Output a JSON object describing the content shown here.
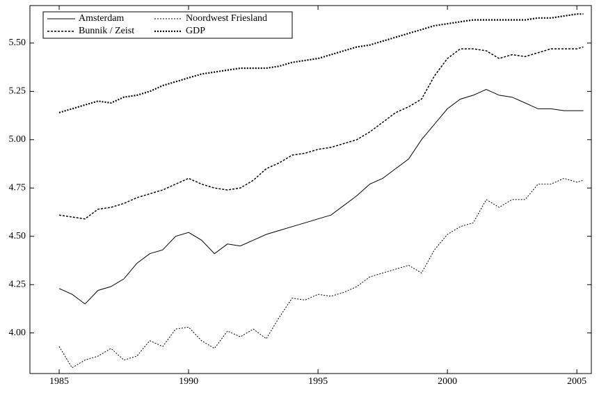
{
  "chart_data": {
    "type": "line",
    "x": [
      1985,
      1985.5,
      1986,
      1986.5,
      1987,
      1987.5,
      1988,
      1988.5,
      1989,
      1989.5,
      1990,
      1990.5,
      1991,
      1991.5,
      1992,
      1992.5,
      1993,
      1993.5,
      1994,
      1994.5,
      1995,
      1995.5,
      1996,
      1996.5,
      1997,
      1997.5,
      1998,
      1998.5,
      1999,
      1999.5,
      2000,
      2000.5,
      2001,
      2001.5,
      2002,
      2002.5,
      2003,
      2003.5,
      2004,
      2004.5,
      2005,
      2005.25
    ],
    "series": [
      {
        "name": "Amsterdam",
        "color": "#000000",
        "values": [
          4.23,
          4.2,
          4.15,
          4.22,
          4.24,
          4.28,
          4.36,
          4.41,
          4.43,
          4.5,
          4.52,
          4.48,
          4.41,
          4.46,
          4.45,
          4.48,
          4.51,
          4.53,
          4.55,
          4.57,
          4.59,
          4.61,
          4.66,
          4.71,
          4.77,
          4.8,
          4.85,
          4.9,
          5.0,
          5.08,
          5.16,
          5.21,
          5.23,
          5.26,
          5.23,
          5.22,
          5.19,
          5.16,
          5.16,
          5.15,
          5.15,
          5.15
        ]
      },
      {
        "name": "Noordwest Friesland",
        "color": "#000000",
        "values": [
          3.93,
          3.82,
          3.86,
          3.88,
          3.92,
          3.86,
          3.88,
          3.96,
          3.93,
          4.02,
          4.03,
          3.96,
          3.92,
          4.01,
          3.98,
          4.02,
          3.97,
          4.08,
          4.18,
          4.17,
          4.2,
          4.19,
          4.21,
          4.24,
          4.29,
          4.31,
          4.33,
          4.35,
          4.31,
          4.43,
          4.51,
          4.55,
          4.57,
          4.69,
          4.65,
          4.69,
          4.69,
          4.77,
          4.77,
          4.8,
          4.78,
          4.79
        ]
      },
      {
        "name": "Bunnik / Zeist",
        "color": "#000000",
        "values": [
          4.61,
          4.6,
          4.59,
          4.64,
          4.65,
          4.67,
          4.7,
          4.72,
          4.74,
          4.77,
          4.8,
          4.77,
          4.75,
          4.74,
          4.75,
          4.79,
          4.85,
          4.88,
          4.92,
          4.93,
          4.95,
          4.96,
          4.98,
          5.0,
          5.04,
          5.09,
          5.14,
          5.17,
          5.21,
          5.33,
          5.42,
          5.47,
          5.47,
          5.46,
          5.42,
          5.44,
          5.43,
          5.45,
          5.47,
          5.47,
          5.47,
          5.48
        ]
      },
      {
        "name": "GDP",
        "color": "#000000",
        "values": [
          5.14,
          5.16,
          5.18,
          5.2,
          5.19,
          5.22,
          5.23,
          5.25,
          5.28,
          5.3,
          5.32,
          5.34,
          5.35,
          5.36,
          5.37,
          5.37,
          5.37,
          5.38,
          5.4,
          5.41,
          5.42,
          5.44,
          5.46,
          5.48,
          5.49,
          5.51,
          5.53,
          5.55,
          5.57,
          5.59,
          5.6,
          5.61,
          5.62,
          5.62,
          5.62,
          5.62,
          5.62,
          5.63,
          5.63,
          5.64,
          5.65,
          5.65
        ]
      }
    ],
    "xlim": [
      1983.87,
      2005.56
    ],
    "xticks": [
      1985,
      1990,
      1995,
      2000,
      2005
    ],
    "ylim": [
      3.79,
      5.694
    ],
    "yticks": [
      {
        "value": 4,
        "label": "4.00"
      },
      4.25,
      {
        "value": 4.5,
        "label": "4.50"
      },
      4.75,
      {
        "value": 5,
        "label": "5.00"
      },
      5.25,
      {
        "value": 5.5,
        "label": "5.50"
      }
    ],
    "legend": "upper left"
  }
}
